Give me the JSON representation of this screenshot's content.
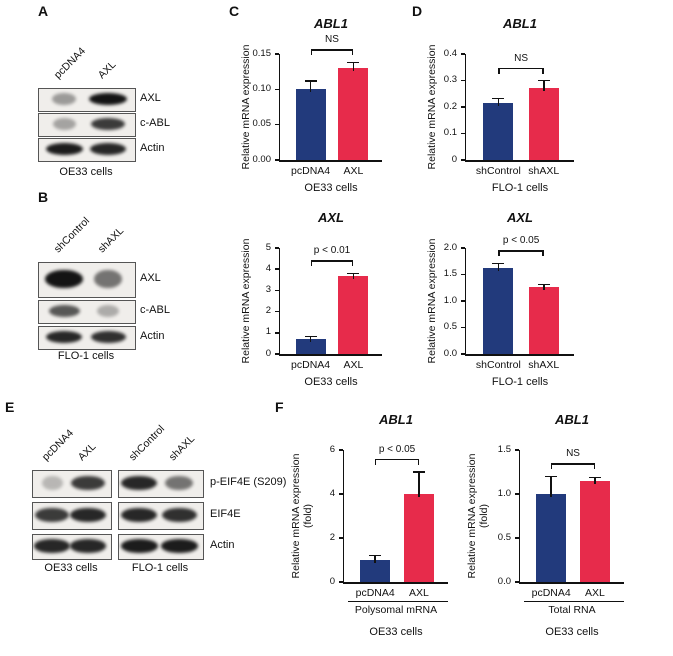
{
  "colors": {
    "bar_control": "#223A7C",
    "bar_treatment": "#E72B4B",
    "axis": "#111111",
    "blot_band": "#141414",
    "blot_box_bg": "#f0eeeb"
  },
  "panel_letters": {
    "A": "A",
    "B": "B",
    "C": "C",
    "D": "D",
    "E": "E",
    "F": "F"
  },
  "blots": {
    "A": {
      "lanes": [
        "pcDNA4",
        "AXL"
      ],
      "rows": [
        {
          "label": "AXL",
          "intensities": [
            0.3,
            1.0
          ]
        },
        {
          "label": "c-ABL",
          "intensities": [
            0.25,
            0.8
          ]
        },
        {
          "label": "Actin",
          "intensities": [
            0.95,
            0.9
          ]
        }
      ],
      "caption": "OE33 cells"
    },
    "B": {
      "lanes": [
        "shControl",
        "shAXL"
      ],
      "rows": [
        {
          "label": "AXL",
          "intensities": [
            1.0,
            0.5
          ]
        },
        {
          "label": "c-ABL",
          "intensities": [
            0.65,
            0.2
          ]
        },
        {
          "label": "Actin",
          "intensities": [
            0.9,
            0.85
          ]
        }
      ],
      "caption": "FLO-1 cells"
    },
    "E": {
      "groups": [
        {
          "lanes": [
            "pcDNA4",
            "AXL"
          ],
          "caption": "OE33 cells"
        },
        {
          "lanes": [
            "shControl",
            "shAXL"
          ],
          "caption": "FLO-1 cells"
        }
      ],
      "rows": [
        {
          "label": "p-EIF4E (S209)",
          "intensities": [
            [
              0.15,
              0.8
            ],
            [
              0.9,
              0.5
            ]
          ]
        },
        {
          "label": "EIF4E",
          "intensities": [
            [
              0.8,
              0.9
            ],
            [
              0.9,
              0.85
            ]
          ]
        },
        {
          "label": "Actin",
          "intensities": [
            [
              0.9,
              0.9
            ],
            [
              0.95,
              0.95
            ]
          ]
        }
      ]
    }
  },
  "chart_data": [
    {
      "id": "panel-C-ABL1",
      "type": "bar",
      "title": "ABL1",
      "ylabel": "Relative mRNA expression",
      "categories": [
        "pcDNA4",
        "AXL"
      ],
      "values": [
        0.1,
        0.13
      ],
      "errors": [
        0.012,
        0.008
      ],
      "ylim": [
        0,
        0.15
      ],
      "yticks": [
        0,
        0.05,
        0.1,
        0.15
      ],
      "ytick_labels": [
        "0.00",
        "0.05",
        "0.10",
        "0.15"
      ],
      "annotation": "NS",
      "xlabel": "OE33 cells"
    },
    {
      "id": "panel-C-AXL",
      "type": "bar",
      "title": "AXL",
      "ylabel": "Relative mRNA expression",
      "categories": [
        "pcDNA4",
        "AXL"
      ],
      "values": [
        0.7,
        3.7
      ],
      "errors": [
        0.12,
        0.1
      ],
      "ylim": [
        0,
        5
      ],
      "yticks": [
        0,
        1,
        2,
        3,
        4,
        5
      ],
      "ytick_labels": [
        "0",
        "1",
        "2",
        "3",
        "4",
        "5"
      ],
      "annotation": "p < 0.01",
      "xlabel": "OE33 cells"
    },
    {
      "id": "panel-D-ABL1",
      "type": "bar",
      "title": "ABL1",
      "ylabel": "Relative mRNA expression",
      "categories": [
        "shControl",
        "shAXL"
      ],
      "values": [
        0.215,
        0.27
      ],
      "errors": [
        0.018,
        0.03
      ],
      "ylim": [
        0,
        0.4
      ],
      "yticks": [
        0,
        0.1,
        0.2,
        0.3,
        0.4
      ],
      "ytick_labels": [
        "0",
        "0.1",
        "0.2",
        "0.3",
        "0.4"
      ],
      "annotation": "NS",
      "xlabel": "FLO-1 cells"
    },
    {
      "id": "panel-D-AXL",
      "type": "bar",
      "title": "AXL",
      "ylabel": "Relative mRNA expression",
      "categories": [
        "shControl",
        "shAXL"
      ],
      "values": [
        1.62,
        1.27
      ],
      "errors": [
        0.09,
        0.04
      ],
      "ylim": [
        0,
        2
      ],
      "yticks": [
        0,
        0.5,
        1.0,
        1.5,
        2.0
      ],
      "ytick_labels": [
        "0.0",
        "0.5",
        "1.0",
        "1.5",
        "2.0"
      ],
      "annotation": "p < 0.05",
      "xlabel": "FLO-1 cells"
    },
    {
      "id": "panel-F-polysomal",
      "type": "bar",
      "title": "ABL1",
      "ylabel": "Relative mRNA expression",
      "ylabel2": "(fold)",
      "categories": [
        "pcDNA4",
        "AXL"
      ],
      "values": [
        1.0,
        4.0
      ],
      "errors": [
        0.2,
        1.0
      ],
      "ylim": [
        0,
        6
      ],
      "yticks": [
        0,
        2,
        4,
        6
      ],
      "ytick_labels": [
        "0",
        "2",
        "4",
        "6"
      ],
      "annotation": "p < 0.05",
      "group_label": "Polysomal mRNA",
      "xlabel": "OE33 cells"
    },
    {
      "id": "panel-F-total",
      "type": "bar",
      "title": "ABL1",
      "ylabel": "Relative mRNA expression",
      "ylabel2": "(fold)",
      "categories": [
        "pcDNA4",
        "AXL"
      ],
      "values": [
        1.0,
        1.15
      ],
      "errors": [
        0.2,
        0.04
      ],
      "ylim": [
        0,
        1.5
      ],
      "yticks": [
        0,
        0.5,
        1.0,
        1.5
      ],
      "ytick_labels": [
        "0.0",
        "0.5",
        "1.0",
        "1.5"
      ],
      "annotation": "NS",
      "group_label": "Total RNA",
      "xlabel": "OE33 cells"
    }
  ]
}
